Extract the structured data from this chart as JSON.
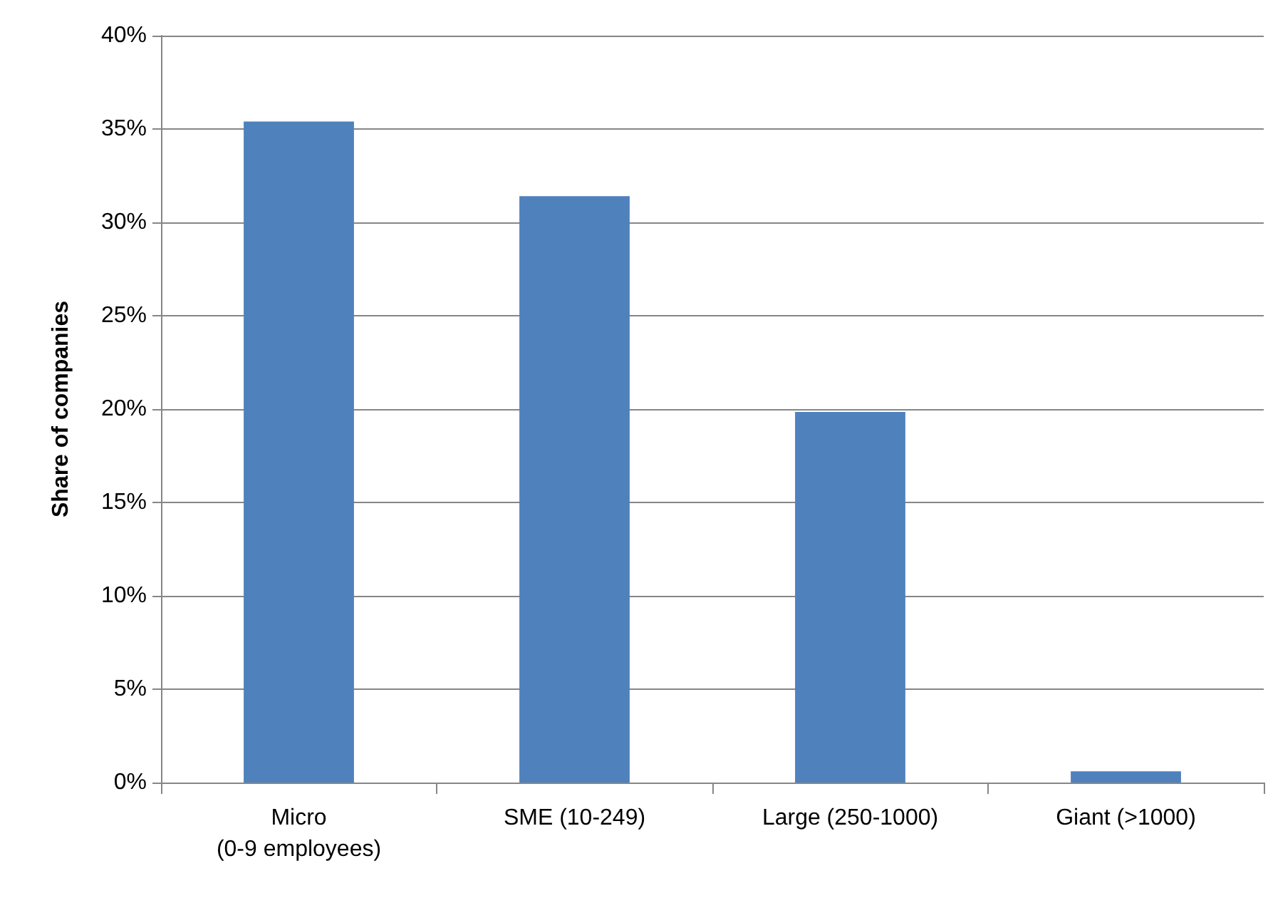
{
  "chart_data": {
    "type": "bar",
    "ylabel": "Share of companies",
    "categories": [
      "Micro\n(0-9 employees)",
      "SME (10-249)",
      "Large (250-1000)",
      "Giant (>1000)"
    ],
    "values": [
      35.4,
      31.4,
      19.85,
      0.6
    ],
    "color": "#4f81bd",
    "ylim": [
      0,
      40
    ],
    "yticks": [
      {
        "value": 0,
        "label": "0%"
      },
      {
        "value": 5,
        "label": "5%"
      },
      {
        "value": 10,
        "label": "10%"
      },
      {
        "value": 15,
        "label": "15%"
      },
      {
        "value": 20,
        "label": "20%"
      },
      {
        "value": 25,
        "label": "25%"
      },
      {
        "value": 30,
        "label": "30%"
      },
      {
        "value": 35,
        "label": "35%"
      },
      {
        "value": 40,
        "label": "40%"
      }
    ],
    "grid": "y"
  }
}
